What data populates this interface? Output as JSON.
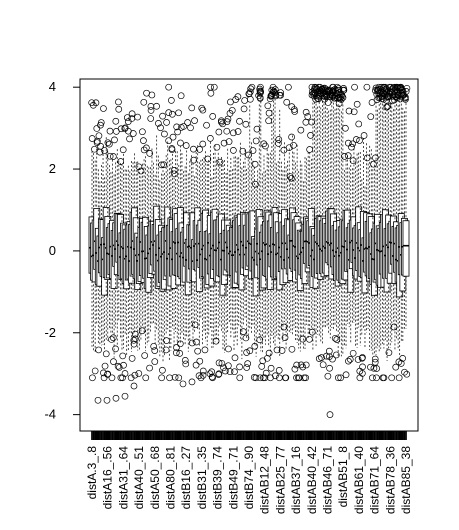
{
  "chart_data": {
    "type": "boxplot",
    "title": "",
    "xlabel": "",
    "ylabel": "",
    "ylim": [
      -4.4,
      4.2
    ],
    "yticks": [
      4,
      2,
      0,
      -2,
      -4
    ],
    "grid": false,
    "legend": "none",
    "box_count": 200,
    "categories": [
      "distA.3_.8",
      "distA16_.56",
      "distA31_.64",
      "distA40_.51",
      "distA50_.68",
      "distA80_.81",
      "distB16_.27",
      "distB31_.35",
      "distB39_.74",
      "distB49_.71",
      "distB74_.90",
      "distAB12_48",
      "distAB25_77",
      "distAB37_16",
      "distAB40_42",
      "distAB46_71",
      "distAB51_8",
      "distAB61_40",
      "distAB71_64",
      "distAB78_36",
      "distAB85_38"
    ],
    "extreme_points": {
      "upper_band": 4.0,
      "min_low": -4.0,
      "low_outliers": [
        -3.65,
        -3.65,
        -3.6,
        -3.55,
        -3.3,
        -3.25,
        -3.2,
        -3.1,
        -3.0,
        -3.0
      ]
    },
    "colors": {
      "stroke": "#000000",
      "background": "#ffffff"
    }
  }
}
